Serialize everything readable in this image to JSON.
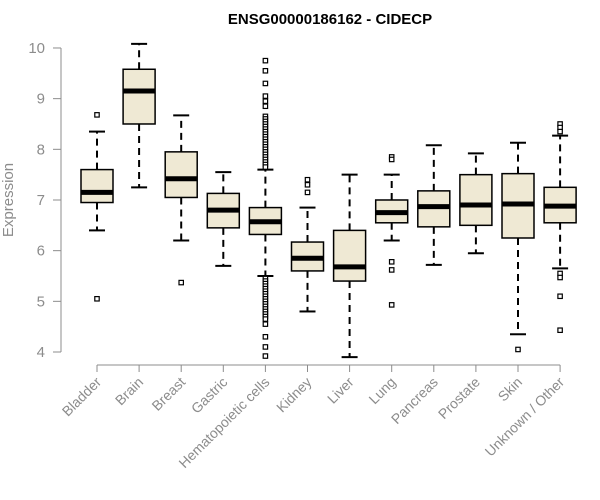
{
  "chart_data": {
    "type": "boxplot",
    "title": "ENSG00000186162 - CIDECP",
    "xlabel": "",
    "ylabel": "Expression",
    "ylim": [
      3.9,
      10.1
    ],
    "yticks": [
      4,
      5,
      6,
      7,
      8,
      9,
      10
    ],
    "box_color": "#efe9d4",
    "categories": [
      "Bladder",
      "Brain",
      "Breast",
      "Gastric",
      "Hematopoietic cells",
      "Kidney",
      "Liver",
      "Lung",
      "Pancreas",
      "Prostate",
      "Skin",
      "Unknown / Other"
    ],
    "boxes": [
      {
        "name": "Bladder",
        "whisker_low": 6.4,
        "q1": 6.95,
        "median": 7.15,
        "q3": 7.6,
        "whisker_high": 8.35,
        "outliers": [
          8.68,
          5.05
        ]
      },
      {
        "name": "Brain",
        "whisker_low": 7.25,
        "q1": 8.5,
        "median": 9.15,
        "q3": 9.58,
        "whisker_high": 10.08,
        "outliers": []
      },
      {
        "name": "Breast",
        "whisker_low": 6.2,
        "q1": 7.05,
        "median": 7.42,
        "q3": 7.95,
        "whisker_high": 8.67,
        "outliers": [
          5.37
        ]
      },
      {
        "name": "Gastric",
        "whisker_low": 5.7,
        "q1": 6.45,
        "median": 6.8,
        "q3": 7.13,
        "whisker_high": 7.55,
        "outliers": []
      },
      {
        "name": "Hematopoietic cells",
        "whisker_low": 5.5,
        "q1": 6.32,
        "median": 6.57,
        "q3": 6.85,
        "whisker_high": 7.6,
        "outliers": [
          9.75,
          9.55,
          9.3,
          9.05,
          8.95,
          8.85,
          8.65,
          8.6,
          8.55,
          8.5,
          8.45,
          8.4,
          8.35,
          8.3,
          8.25,
          8.2,
          8.15,
          8.1,
          8.05,
          8.0,
          7.95,
          7.9,
          7.85,
          7.8,
          7.75,
          7.7,
          7.65,
          5.45,
          5.4,
          5.35,
          5.3,
          5.25,
          5.2,
          5.15,
          5.1,
          5.05,
          5.0,
          4.95,
          4.9,
          4.85,
          4.8,
          4.75,
          4.7,
          4.65,
          4.55,
          4.3,
          4.1,
          3.92
        ]
      },
      {
        "name": "Kidney",
        "whisker_low": 4.8,
        "q1": 5.6,
        "median": 5.85,
        "q3": 6.17,
        "whisker_high": 6.85,
        "outliers": [
          7.4,
          7.3,
          7.15
        ]
      },
      {
        "name": "Liver",
        "whisker_low": 3.9,
        "q1": 5.4,
        "median": 5.68,
        "q3": 6.4,
        "whisker_high": 7.5,
        "outliers": []
      },
      {
        "name": "Lung",
        "whisker_low": 6.2,
        "q1": 6.55,
        "median": 6.75,
        "q3": 7.0,
        "whisker_high": 7.5,
        "outliers": [
          7.85,
          7.8,
          5.78,
          5.62,
          4.93
        ]
      },
      {
        "name": "Pancreas",
        "whisker_low": 5.72,
        "q1": 6.47,
        "median": 6.87,
        "q3": 7.18,
        "whisker_high": 8.08,
        "outliers": []
      },
      {
        "name": "Prostate",
        "whisker_low": 5.95,
        "q1": 6.5,
        "median": 6.9,
        "q3": 7.5,
        "whisker_high": 7.92,
        "outliers": []
      },
      {
        "name": "Skin",
        "whisker_low": 4.35,
        "q1": 6.25,
        "median": 6.92,
        "q3": 7.52,
        "whisker_high": 8.13,
        "outliers": [
          4.05
        ]
      },
      {
        "name": "Unknown / Other",
        "whisker_low": 5.65,
        "q1": 6.55,
        "median": 6.88,
        "q3": 7.25,
        "whisker_high": 8.27,
        "outliers": [
          8.5,
          8.43,
          8.35,
          5.55,
          5.47,
          5.1,
          4.43
        ]
      }
    ]
  }
}
